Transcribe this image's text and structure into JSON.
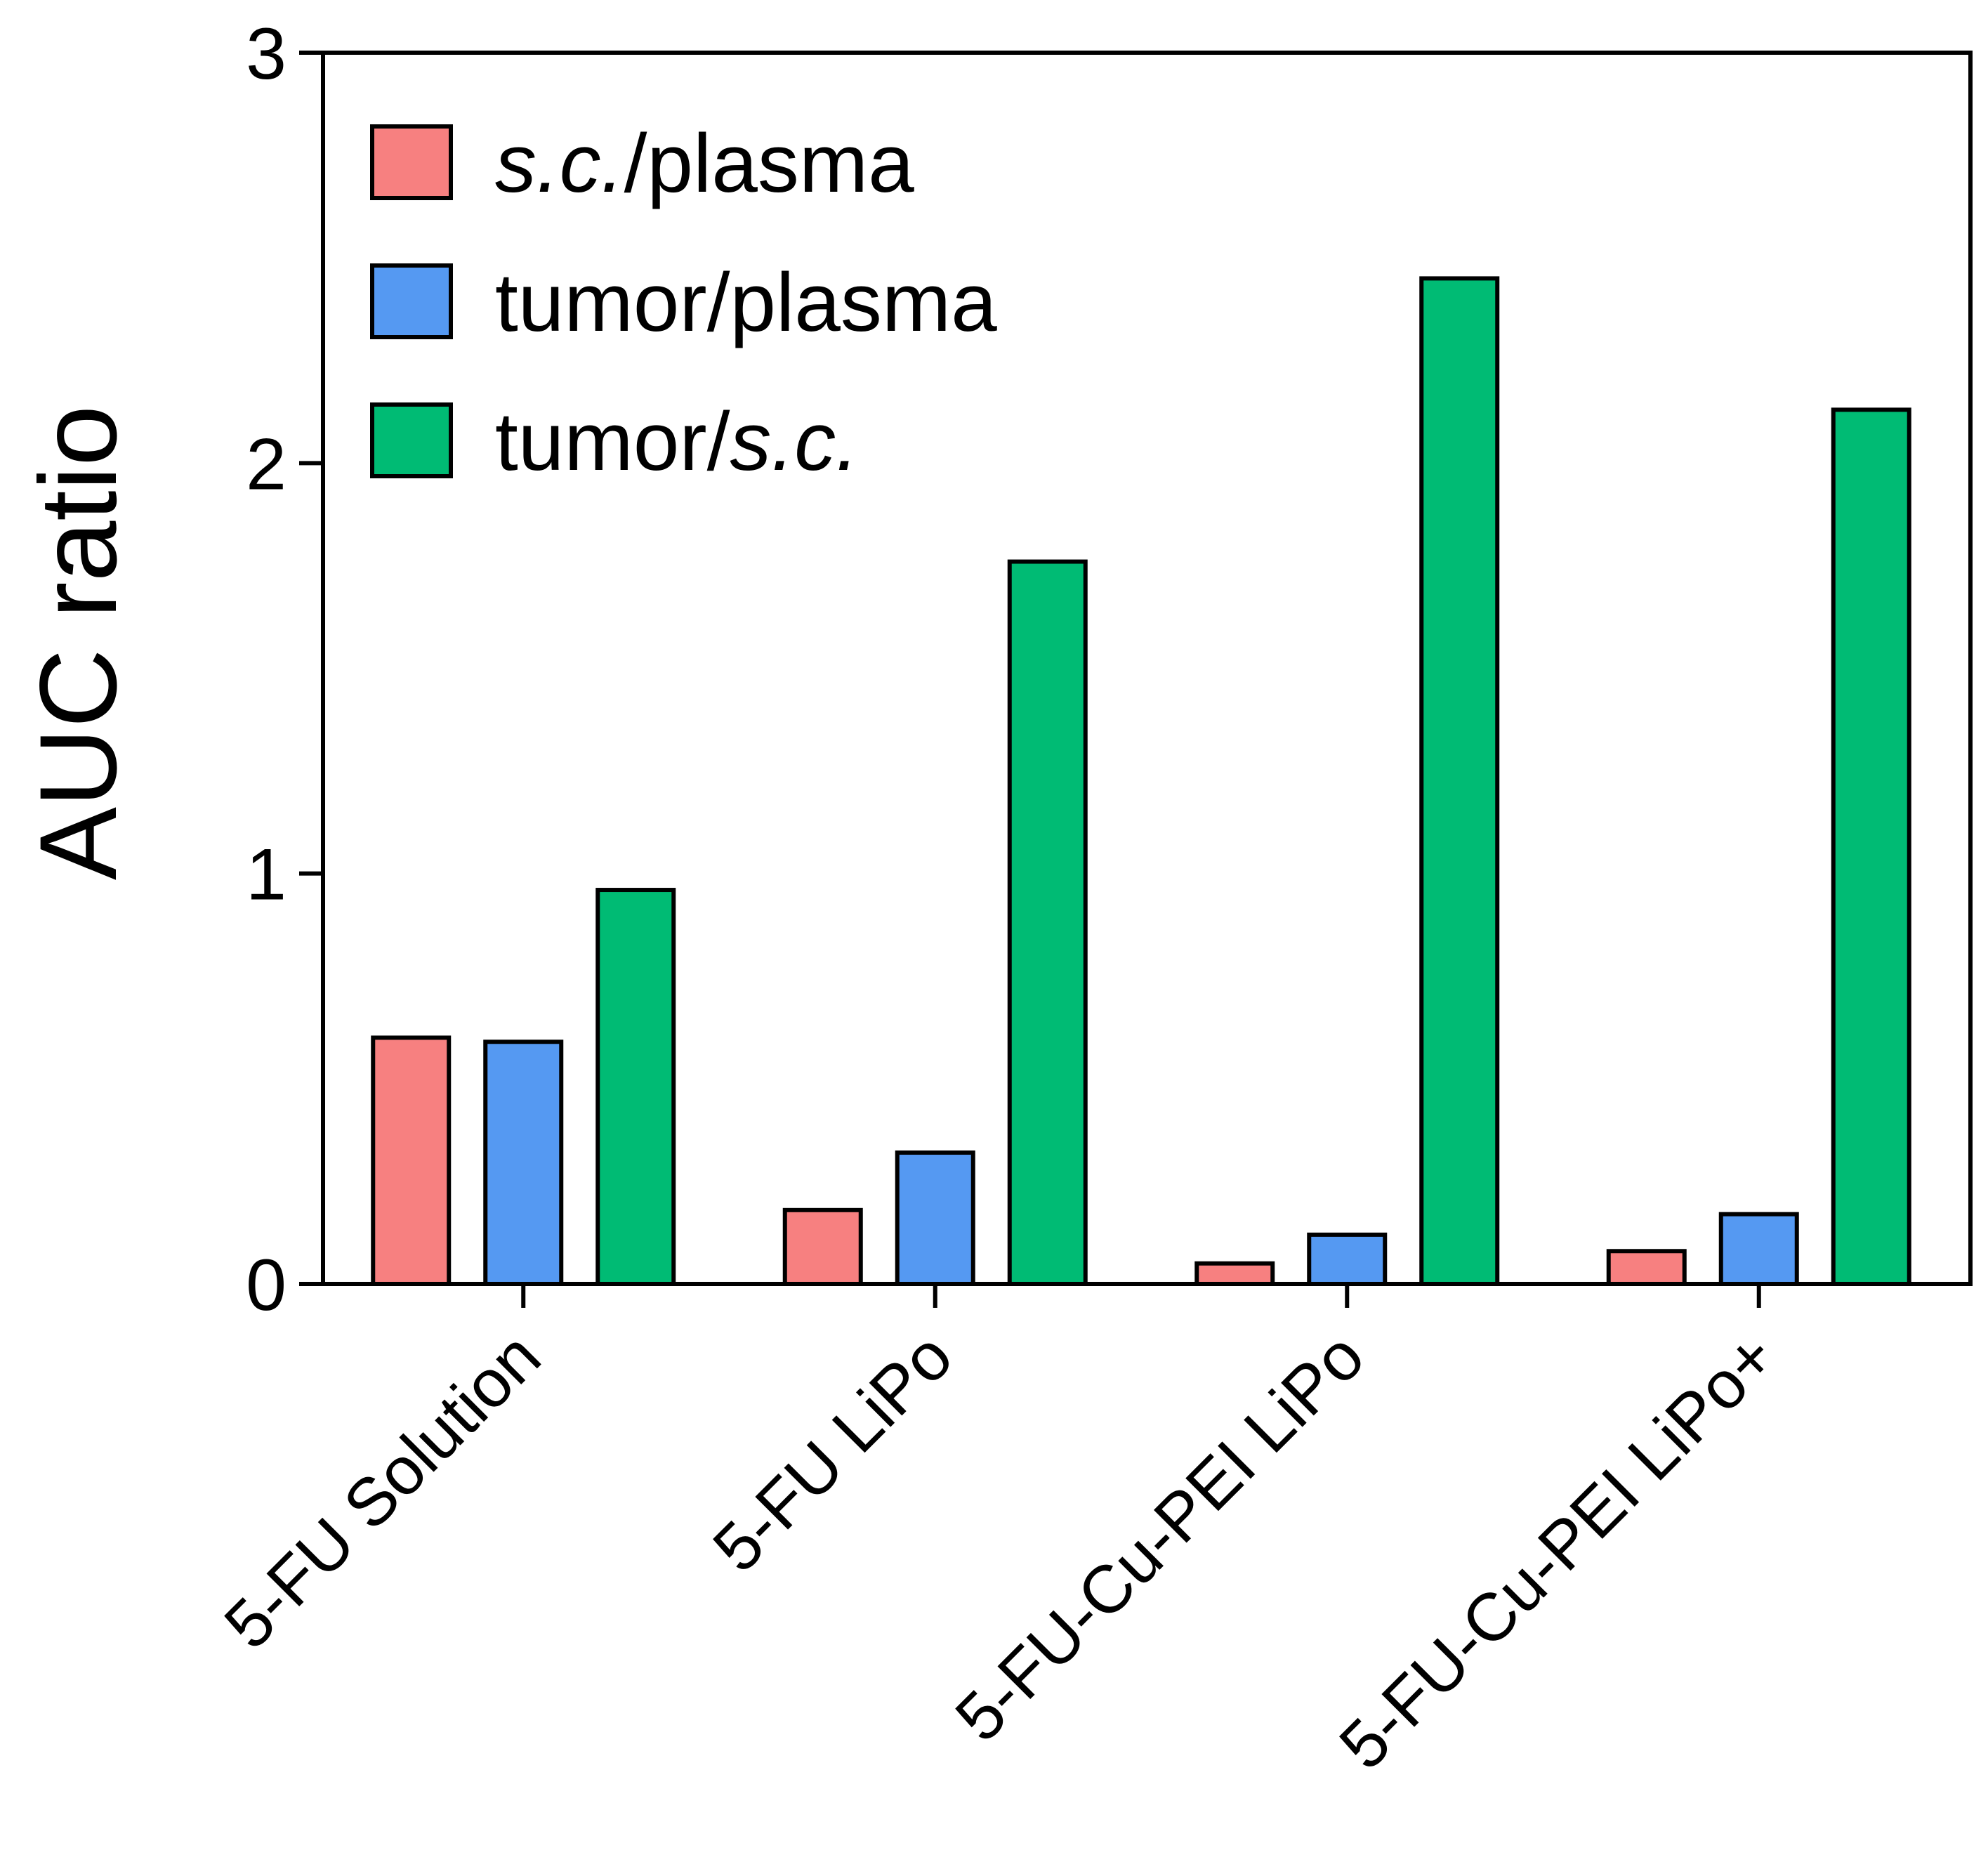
{
  "chart_data": {
    "type": "bar",
    "title": "",
    "xlabel": "",
    "ylabel": "AUC ratio",
    "ylim": [
      0,
      3
    ],
    "yticks": [
      "0",
      "1",
      "2",
      "3"
    ],
    "categories": [
      "5-FU Solution",
      "5-FU LiPo",
      "5-FU-Cu-PEI LiPo",
      "5-FU-Cu-PEI LiPo+"
    ],
    "series": [
      {
        "name": "s.c./plasma",
        "color": "#f78080",
        "values": [
          0.6,
          0.18,
          0.05,
          0.08
        ]
      },
      {
        "name": "tumor/plasma",
        "color": "#5599f2",
        "values": [
          0.59,
          0.32,
          0.12,
          0.17
        ]
      },
      {
        "name": "tumor/s.c.",
        "color": "#00bb74",
        "values": [
          0.96,
          1.76,
          2.45,
          2.13
        ]
      }
    ],
    "legend": {
      "position": "top-left",
      "entries": [
        {
          "parts": [
            {
              "text": "s.c.",
              "italic": true
            },
            {
              "text": "/plasma",
              "italic": false
            }
          ]
        },
        {
          "parts": [
            {
              "text": "tumor/plasma",
              "italic": false
            }
          ]
        },
        {
          "parts": [
            {
              "text": "tumor/",
              "italic": false
            },
            {
              "text": "s.c.",
              "italic": true
            }
          ]
        }
      ]
    },
    "grid": false
  }
}
